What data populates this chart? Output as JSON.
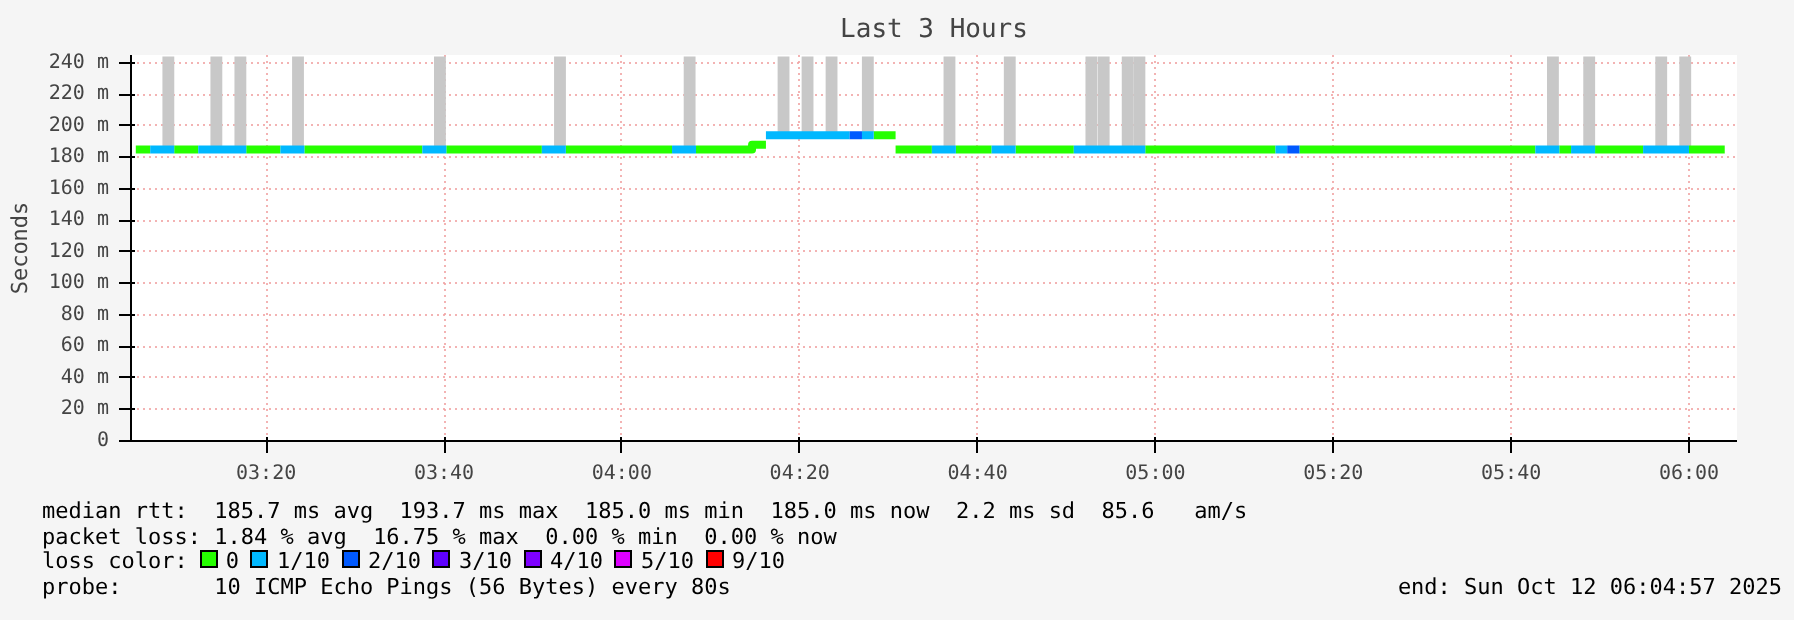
{
  "chart_data": {
    "type": "line",
    "title": "Last 3 Hours",
    "ylabel": "Seconds",
    "xlim": [
      3.08,
      6.09
    ],
    "ylim": [
      0,
      245
    ],
    "xticks": [
      {
        "value": 3.3333,
        "label": "03:20"
      },
      {
        "value": 3.6667,
        "label": "03:40"
      },
      {
        "value": 4.0,
        "label": "04:00"
      },
      {
        "value": 4.3333,
        "label": "04:20"
      },
      {
        "value": 4.6667,
        "label": "04:40"
      },
      {
        "value": 5.0,
        "label": "05:00"
      },
      {
        "value": 5.3333,
        "label": "05:20"
      },
      {
        "value": 5.6667,
        "label": "05:40"
      },
      {
        "value": 6.0,
        "label": "06:00"
      }
    ],
    "yticks": [
      0,
      {
        "value": 20,
        "label": "20 m"
      },
      {
        "value": 40,
        "label": "40 m"
      },
      {
        "value": 60,
        "label": "60 m"
      },
      {
        "value": 80,
        "label": "80 m"
      },
      {
        "value": 100,
        "label": "100 m"
      },
      {
        "value": 120,
        "label": "120 m"
      },
      {
        "value": 140,
        "label": "140 m"
      },
      {
        "value": 160,
        "label": "160 m"
      },
      {
        "value": 180,
        "label": "180 m"
      },
      {
        "value": 200,
        "label": "200 m"
      },
      {
        "value": 220,
        "label": "220 m"
      },
      {
        "value": 240,
        "label": "240 m"
      }
    ],
    "grid": true,
    "legend": "bottom",
    "legend_title": "loss color:",
    "line_style": "solid",
    "marker": "none",
    "series": [
      {
        "type": "bar",
        "color": "#c8c8c8",
        "x": [
          3.15,
          3.24,
          3.285,
          3.393,
          3.659,
          3.884,
          4.127,
          4.303,
          4.348,
          4.393,
          4.461,
          4.614,
          4.727,
          4.88,
          4.903,
          4.948,
          4.97,
          5.745,
          5.813,
          5.948,
          5.993
        ],
        "base": [
          187,
          187,
          187,
          187,
          187,
          187,
          187,
          196,
          196,
          196,
          196,
          187,
          187,
          187,
          187,
          187,
          187,
          187,
          187,
          187,
          187
        ],
        "values": [
          57,
          57,
          57,
          57,
          57,
          57,
          57,
          48,
          48,
          48,
          48,
          57,
          57,
          57,
          57,
          57,
          57,
          57,
          57,
          57,
          57
        ]
      },
      {
        "name": "0",
        "color": "#26ff00",
        "x": [
          3.089,
          3.116,
          null,
          3.161,
          3.206,
          null,
          3.296,
          3.36,
          null,
          3.405,
          3.626,
          null,
          3.671,
          3.85,
          null,
          3.895,
          4.094,
          null,
          4.139,
          4.244,
          4.244,
          4.27,
          null,
          4.472,
          4.513,
          null,
          4.513,
          4.581,
          null,
          4.626,
          4.693,
          null,
          4.738,
          4.847,
          null,
          4.981,
          5.225,
          null,
          5.27,
          5.712,
          null,
          5.757,
          5.779,
          null,
          5.824,
          5.914,
          null,
          6.0,
          6.067
        ],
        "values": [
          185,
          185,
          null,
          185,
          185,
          null,
          185,
          185,
          null,
          185,
          185,
          null,
          185,
          185,
          null,
          185,
          185,
          null,
          185,
          185,
          188,
          188,
          null,
          194,
          194,
          null,
          185,
          185,
          null,
          185,
          185,
          null,
          185,
          185,
          null,
          185,
          185,
          null,
          185,
          185,
          null,
          185,
          185,
          null,
          185,
          185,
          null,
          185,
          185
        ]
      },
      {
        "name": "1/10",
        "color": "#00b8ff",
        "x": [
          3.116,
          3.161,
          null,
          3.206,
          3.296,
          null,
          3.36,
          3.405,
          null,
          3.626,
          3.671,
          null,
          3.85,
          3.895,
          null,
          4.094,
          4.139,
          null,
          4.27,
          4.427,
          null,
          4.45,
          4.472,
          null,
          4.581,
          4.626,
          null,
          4.693,
          4.738,
          null,
          4.847,
          4.981,
          null,
          5.225,
          5.247,
          null,
          5.712,
          5.757,
          null,
          5.779,
          5.824,
          null,
          5.914,
          6.0
        ],
        "values": [
          185,
          185,
          null,
          185,
          185,
          null,
          185,
          185,
          null,
          185,
          185,
          null,
          185,
          185,
          null,
          185,
          185,
          null,
          194,
          194,
          null,
          194,
          194,
          null,
          185,
          185,
          null,
          185,
          185,
          null,
          185,
          185,
          null,
          185,
          185,
          null,
          185,
          185,
          null,
          185,
          185,
          null,
          185,
          185
        ]
      },
      {
        "name": "2/10",
        "color": "#0059ff",
        "x": [
          4.427,
          4.45,
          null,
          5.247,
          5.27
        ],
        "values": [
          194,
          194,
          null,
          185,
          185
        ]
      },
      {
        "name": "3/10",
        "color": "#5e00ff"
      },
      {
        "name": "4/10",
        "color": "#7e00ff"
      },
      {
        "name": "5/10",
        "color": "#dd00ff"
      },
      {
        "name": "9/10",
        "color": "#ff0000"
      }
    ],
    "annotations": [
      "median rtt:  185.7 ms avg  193.7 ms max  185.0 ms min  185.0 ms now  2.2 ms sd  85.6   am/s",
      "packet loss: 1.84 % avg  16.75 % max  0.00 % min  0.00 % now",
      "probe:       10 ICMP Echo Pings (56 Bytes) every 80s",
      "end: Sun Oct 12 06:04:57 2025"
    ]
  }
}
